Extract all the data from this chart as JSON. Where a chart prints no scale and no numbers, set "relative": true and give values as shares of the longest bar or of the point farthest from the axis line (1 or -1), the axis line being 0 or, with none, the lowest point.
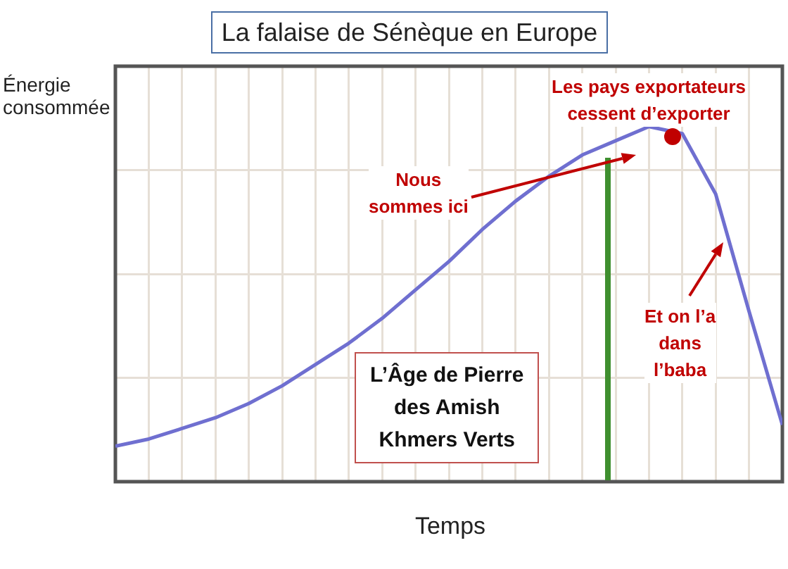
{
  "chart_data": {
    "type": "line",
    "title": "La falaise de Sénèque en Europe",
    "xlabel": "Temps",
    "ylabel": "Énergie\nconsommée",
    "relative": true,
    "grid": true,
    "legend": false,
    "tick_labels": false,
    "marker": "none",
    "categories": [
      null,
      null,
      null,
      null,
      null,
      null,
      null,
      null,
      null,
      null,
      null,
      null,
      null,
      null,
      null,
      null,
      null,
      null,
      null,
      null,
      null
    ],
    "series": [
      {
        "color": "#6f6fd0",
        "values": [
          0.1,
          0.12,
          0.15,
          0.18,
          0.22,
          0.27,
          0.33,
          0.39,
          0.46,
          0.54,
          0.62,
          0.71,
          0.79,
          0.86,
          0.92,
          0.96,
          1,
          0.98,
          0.81,
          0.48,
          0.16
        ]
      }
    ],
    "annotations": [
      "Nous\nsommes ici",
      "Les pays exportateurs\ncessent d’exporter",
      "Et on l’a\ndans\nl’baba",
      "L’Âge de Pierre\ndes Amish\nKhmers Verts"
    ]
  }
}
